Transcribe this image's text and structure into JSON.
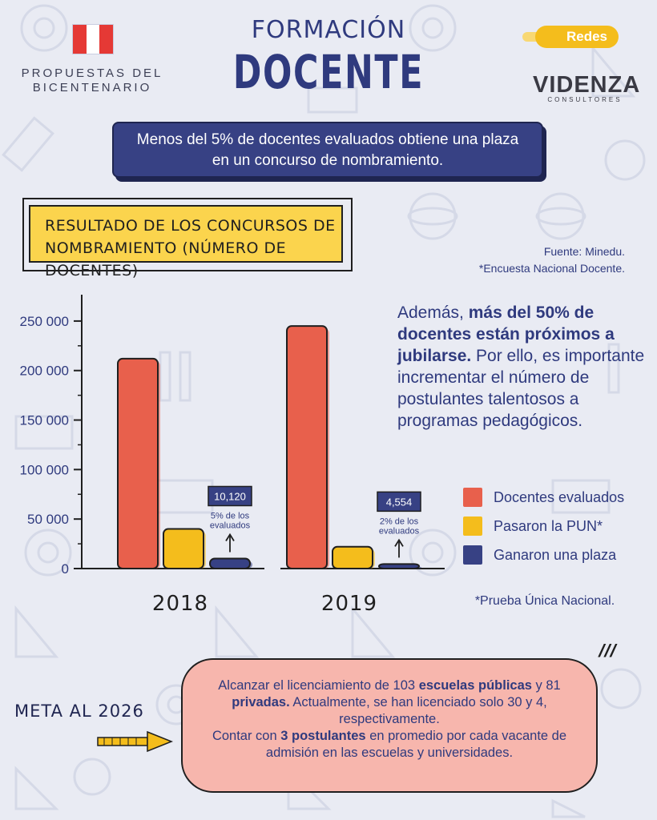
{
  "header": {
    "logo_text_line1": "PROPUESTAS DEL",
    "logo_text_line2": "BICENTENARIO",
    "title_top": "FORMACIÓN",
    "title_main": "DOCENTE",
    "social_badge": "Redes",
    "brand": "VIDENZA",
    "brand_sub": "CONSULTORES"
  },
  "banner": {
    "line1": "Menos del 5% de docentes evaluados obtiene una plaza",
    "line2": "en un concurso de nombramiento."
  },
  "source": {
    "line1": "Fuente: Minedu.",
    "line2": "*Encuesta Nacional Docente."
  },
  "side_text": {
    "p1": "Además, ",
    "p1_bold": "más del 50% de docentes están próximos a jubilarse.",
    "p2": " Por ello, es importante incrementar el número de postulantes talentosos a programas pedagógicos."
  },
  "footnote": "*Prueba Única Nacional.",
  "ticks_mark": "///",
  "meta": {
    "label": "META AL 2026",
    "t1": "Alcanzar el licenciamiento de 103 ",
    "t1_b": "escuelas públicas",
    "t2": " y 81 ",
    "t2_b": "privadas.",
    "t3": " Actualmente, se han licenciado solo 30 y 4, respectivamente.",
    "t4": "Contar con ",
    "t4_b": "3 postulantes",
    "t5": " en promedio por cada vacante de admisión en las escuelas y universidades."
  },
  "colors": {
    "evaluados": "#e8604c",
    "pun": "#f4bd1c",
    "plaza": "#374184",
    "navy": "#2f3a7e",
    "background": "#e9ebf3"
  },
  "chart_data": {
    "type": "bar",
    "title": "RESULTADO DE LOS CONCURSOS DE NOMBRAMIENTO (NÚMERO DE DOCENTES)",
    "categories": [
      "2018",
      "2019"
    ],
    "series": [
      {
        "name": "Docentes evaluados",
        "values": [
          212000,
          245000
        ]
      },
      {
        "name": "Pasaron la PUN*",
        "values": [
          40000,
          22000
        ]
      },
      {
        "name": "Ganaron una plaza",
        "values": [
          10120,
          4554
        ]
      }
    ],
    "yticks": [
      "0",
      "50 000",
      "100 000",
      "150 000",
      "200 000",
      "250 000"
    ],
    "ylim": [
      0,
      275000
    ],
    "annotations": [
      {
        "category": "2018",
        "value_label": "10,120",
        "note_line1": "5% de los",
        "note_line2": "evaluados"
      },
      {
        "category": "2019",
        "value_label": "4,554",
        "note_line1": "2% de los",
        "note_line2": "evaluados"
      }
    ],
    "legend_position": "right"
  }
}
